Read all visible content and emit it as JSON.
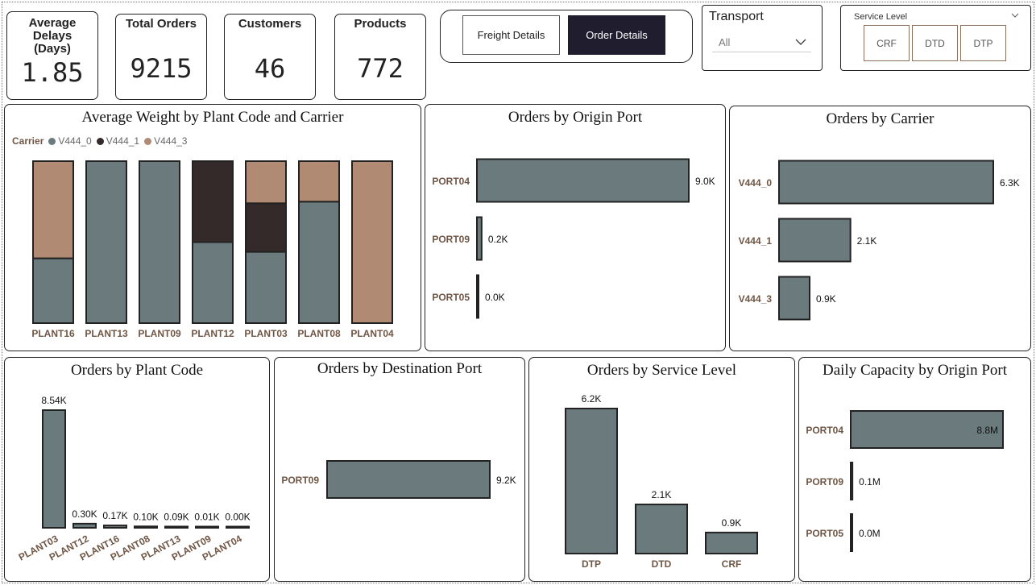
{
  "kpis": {
    "avg_delays": {
      "label": "Average Delays (Days)",
      "value": "1.85"
    },
    "total_orders": {
      "label": "Total Orders",
      "value": "9215"
    },
    "customers": {
      "label": "Customers",
      "value": "46"
    },
    "products": {
      "label": "Products",
      "value": "772"
    }
  },
  "toggle": {
    "freight_label": "Freight Details",
    "order_label": "Order Details",
    "selected": "Order Details"
  },
  "transport": {
    "title": "Transport",
    "selected": "All"
  },
  "service_level": {
    "title": "Service Level",
    "options": [
      "CRF",
      "DTD",
      "DTP"
    ]
  },
  "colors": {
    "series0": "#6b7a7c",
    "series1": "#352a2a",
    "series3": "#b08a72",
    "label_brown": "#6f5645",
    "dark": "#222222"
  },
  "chart_data": [
    {
      "id": "avg_weight",
      "type": "bar",
      "stacked": "100%",
      "title": "Average Weight by Plant Code and Carrier",
      "legend_title": "Carrier",
      "categories": [
        "PLANT16",
        "PLANT13",
        "PLANT09",
        "PLANT12",
        "PLANT03",
        "PLANT08",
        "PLANT04"
      ],
      "series": [
        {
          "name": "V444_0",
          "values": [
            0.4,
            1.0,
            1.0,
            0.5,
            0.44,
            0.75,
            0
          ]
        },
        {
          "name": "V444_1",
          "values": [
            0,
            0,
            0,
            0.5,
            0.3,
            0,
            0
          ]
        },
        {
          "name": "V444_3",
          "values": [
            0.6,
            0,
            0,
            0,
            0.26,
            0.25,
            1.0
          ]
        }
      ]
    },
    {
      "id": "orders_origin",
      "type": "bar",
      "orientation": "horizontal",
      "title": "Orders by Origin Port",
      "categories": [
        "PORT04",
        "PORT09",
        "PORT05"
      ],
      "values": [
        9.0,
        0.2,
        0.0
      ],
      "labels": [
        "9.0K",
        "0.2K",
        "0.0K"
      ]
    },
    {
      "id": "orders_carrier",
      "type": "bar",
      "orientation": "horizontal",
      "title": "Orders by Carrier",
      "categories": [
        "V444_0",
        "V444_1",
        "V444_3"
      ],
      "values": [
        6.3,
        2.1,
        0.9
      ],
      "labels": [
        "6.3K",
        "2.1K",
        "0.9K"
      ]
    },
    {
      "id": "orders_plant",
      "type": "bar",
      "title": "Orders by Plant Code",
      "categories": [
        "PLANT03",
        "PLANT12",
        "PLANT16",
        "PLANT08",
        "PLANT13",
        "PLANT09",
        "PLANT04"
      ],
      "values": [
        8.54,
        0.3,
        0.17,
        0.1,
        0.09,
        0.01,
        0.0
      ],
      "labels": [
        "8.54K",
        "0.30K",
        "0.17K",
        "0.10K",
        "0.09K",
        "0.01K",
        "0.00K"
      ]
    },
    {
      "id": "orders_dest",
      "type": "bar",
      "orientation": "horizontal",
      "title": "Orders by Destination Port",
      "categories": [
        "PORT09"
      ],
      "values": [
        9.2
      ],
      "labels": [
        "9.2K"
      ]
    },
    {
      "id": "orders_service",
      "type": "bar",
      "title": "Orders by Service Level",
      "categories": [
        "DTP",
        "DTD",
        "CRF"
      ],
      "values": [
        6.2,
        2.1,
        0.9
      ],
      "labels": [
        "6.2K",
        "2.1K",
        "0.9K"
      ]
    },
    {
      "id": "daily_capacity",
      "type": "bar",
      "orientation": "horizontal",
      "title": "Daily Capacity by Origin Port",
      "categories": [
        "PORT04",
        "PORT09",
        "PORT05"
      ],
      "values": [
        8.8,
        0.1,
        0.0
      ],
      "labels": [
        "8.8M",
        "0.1M",
        "0.0M"
      ]
    }
  ]
}
